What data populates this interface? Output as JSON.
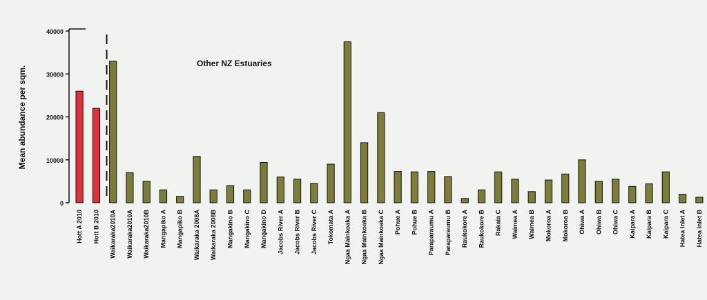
{
  "chart_data": {
    "type": "bar",
    "title": "Other NZ Estuaries",
    "ylabel": "Mean abundance per sqm.",
    "xlabel": "",
    "ylim": [
      0,
      40000
    ],
    "yticks": [
      0,
      10000,
      20000,
      30000,
      40000
    ],
    "ytick_labels": [
      "0",
      "10000",
      "20000",
      "30000",
      "40000"
    ],
    "grid": false,
    "colors": {
      "highlight": "#e0303a",
      "default": "#7d7d3a",
      "frame": "#111111"
    },
    "categories": [
      "Hott A 2010",
      "Hott B 2010",
      "Waikaraka2010A",
      "Waikaraka2010A",
      "Waikaraka2010B",
      "Mangapiko A",
      "Mangapiko B",
      "Waikaraka 2008A",
      "Waikaraka 2008B",
      "Mangakino B",
      "Mangakino C",
      "Mangakino D",
      "Jacobs River A",
      "Jacobs River B",
      "Jacobs River C",
      "Tokomata A",
      "Ngaa Mainkoaka A",
      "Ngaa Mainkoaka B",
      "Ngaa Mainkoaka C",
      "Pohue A",
      "Pohue B",
      "Paraparaumu A",
      "Paraparaumu B",
      "Raukokore A",
      "Raukokore B",
      "Rakaia C",
      "Waimea A",
      "Waimea B",
      "Mokoroa A",
      "Mokoroa B",
      "Ohiwa A",
      "Ohiwa B",
      "Ohiwa C",
      "Kaipara A",
      "Kaipara B",
      "Kaipara C",
      "Hatea Inlet A",
      "Hatea Inlet B"
    ],
    "values": [
      26000,
      22000,
      33000,
      7000,
      5000,
      3000,
      1500,
      10800,
      3000,
      4000,
      3000,
      9400,
      6000,
      5500,
      4500,
      9000,
      37500,
      14000,
      21000,
      7300,
      7200,
      7300,
      6100,
      1000,
      3000,
      7200,
      5500,
      2600,
      5300,
      6700,
      10000,
      5000,
      5500,
      3800,
      4400,
      7200,
      2000,
      1300
    ],
    "highlight_indices": [
      0,
      1
    ]
  }
}
